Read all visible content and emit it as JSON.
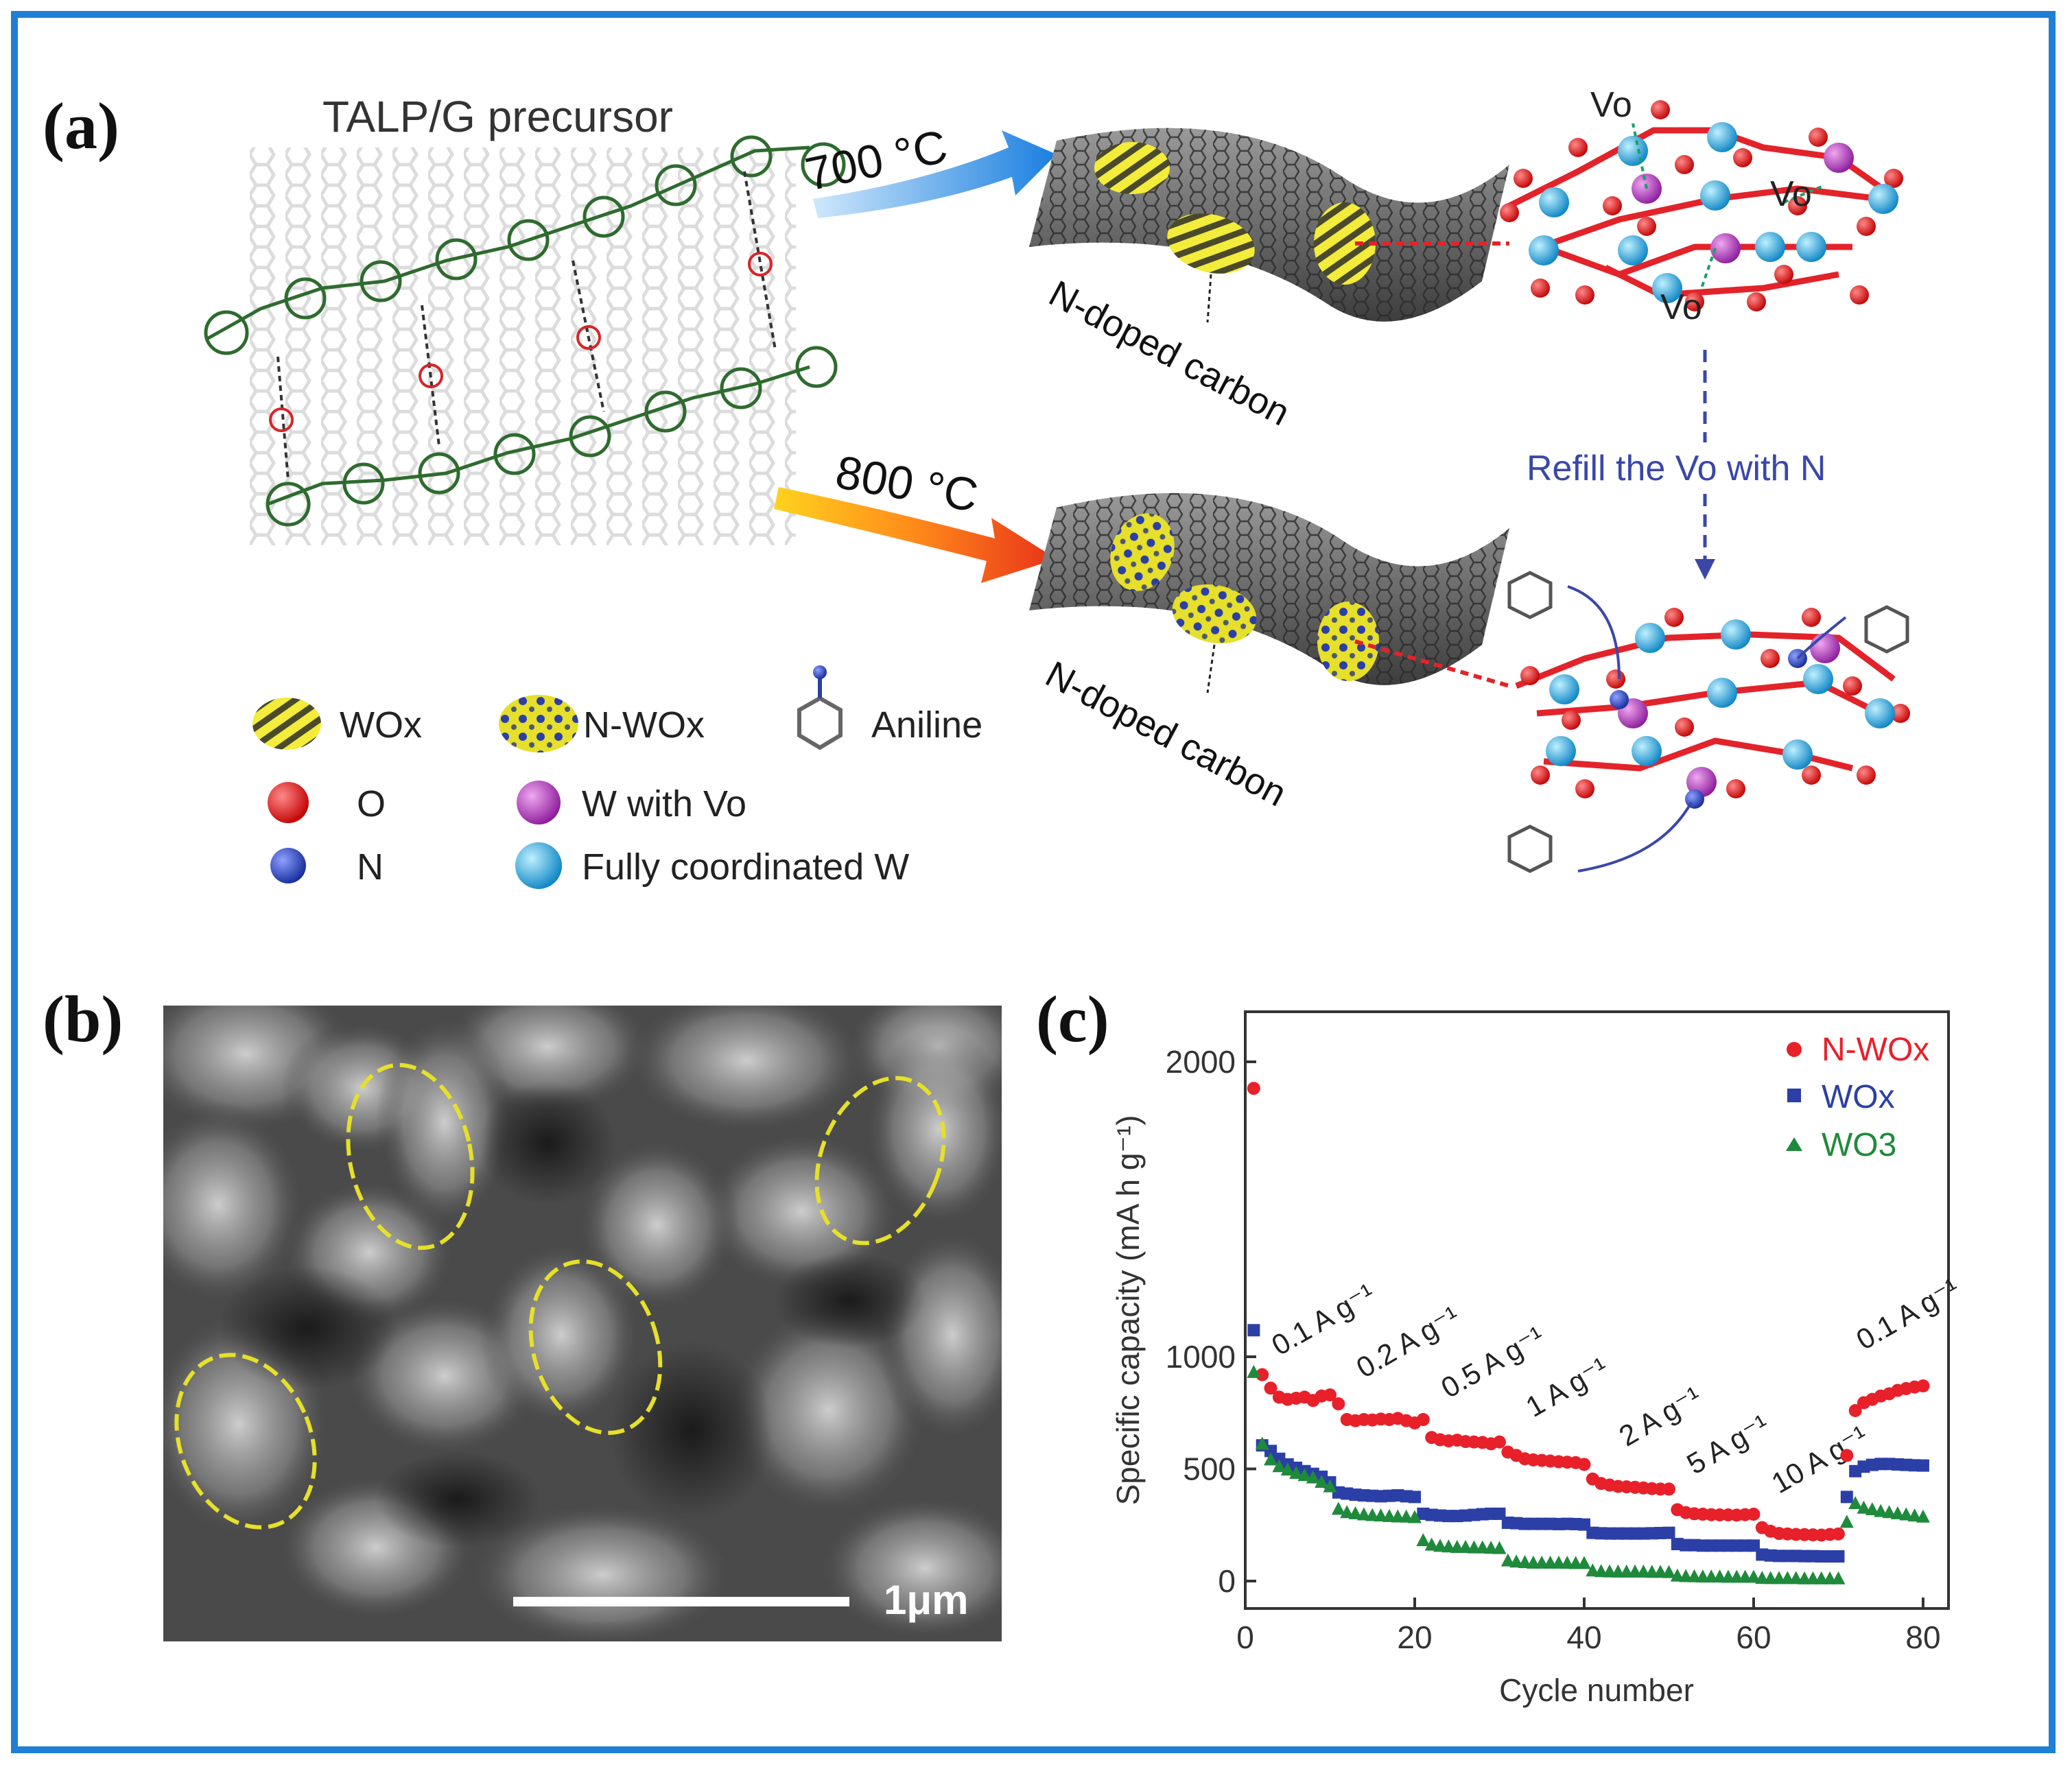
{
  "panels": {
    "a": "(a)",
    "b": "(b)",
    "c": "(c)"
  },
  "schematic": {
    "precursor_title": "TALP/G precursor",
    "temp_low": "700 °C",
    "temp_high": "800 °C",
    "carbon_label_top": "N-doped carbon",
    "carbon_label_bottom": "N-doped carbon",
    "vacancy_label": "Vo",
    "refill_text": "Refill the Vo with N",
    "legend": {
      "wox": "WOx",
      "nwox": "N-WOx",
      "aniline": "Aniline",
      "o": "O",
      "w_vo": "W with Vo",
      "n": "N",
      "w_full": "Fully coordinated W"
    }
  },
  "micrograph": {
    "scale_bar": "1μm"
  },
  "colors": {
    "frame": "#1e7fd6",
    "nwox": "#e8202a",
    "wox": "#2b3fa6",
    "wo3": "#1f8a3b",
    "refill": "#3a47a8"
  },
  "chart_data": {
    "type": "scatter",
    "xlabel": "Cycle number",
    "ylabel": "Specific capacity (mA h g⁻¹)",
    "xlim": [
      0,
      83
    ],
    "ylim": [
      -60,
      2100
    ],
    "xticks": [
      "0",
      "20",
      "40",
      "60",
      "80"
    ],
    "yticks": [
      "0",
      "500",
      "1000",
      "2000"
    ],
    "ytick_values": [
      0,
      500,
      1000,
      2000
    ],
    "ybreak": "between 1000 and 2000 (upper segment compressed)",
    "rate_labels": [
      "0.1 A g⁻¹",
      "0.2 A g⁻¹",
      "0.5 A g⁻¹",
      "1 A g⁻¹",
      "2 A g⁻¹",
      "5 A g⁻¹",
      "10 A g⁻¹",
      "0.1 A g⁻¹"
    ],
    "series": [
      {
        "name": "N-WOx",
        "marker": "circle",
        "x": [
          1,
          2,
          3,
          4,
          5,
          6,
          7,
          8,
          9,
          10,
          11,
          12,
          13,
          14,
          15,
          16,
          17,
          18,
          19,
          20,
          21,
          22,
          23,
          24,
          25,
          26,
          27,
          28,
          29,
          30,
          31,
          32,
          33,
          34,
          35,
          36,
          37,
          38,
          39,
          40,
          41,
          42,
          43,
          44,
          45,
          46,
          47,
          48,
          49,
          50,
          51,
          52,
          53,
          54,
          55,
          56,
          57,
          58,
          59,
          60,
          61,
          62,
          63,
          64,
          65,
          66,
          67,
          68,
          69,
          70,
          71,
          72,
          73,
          74,
          75,
          76,
          77,
          78,
          79,
          80
        ],
        "y": [
          1910,
          920,
          860,
          820,
          810,
          815,
          820,
          805,
          825,
          830,
          790,
          720,
          715,
          720,
          718,
          722,
          720,
          725,
          715,
          705,
          720,
          640,
          630,
          625,
          628,
          622,
          620,
          618,
          612,
          620,
          575,
          560,
          545,
          540,
          538,
          535,
          532,
          530,
          528,
          520,
          455,
          435,
          428,
          422,
          420,
          418,
          415,
          412,
          410,
          410,
          318,
          305,
          300,
          298,
          296,
          295,
          295,
          294,
          296,
          298,
          238,
          222,
          212,
          210,
          208,
          207,
          206,
          205,
          208,
          210,
          560,
          760,
          795,
          810,
          825,
          835,
          850,
          858,
          865,
          870
        ]
      },
      {
        "name": "WOx",
        "marker": "square",
        "x": [
          1,
          2,
          3,
          4,
          5,
          6,
          7,
          8,
          9,
          10,
          11,
          12,
          13,
          14,
          15,
          16,
          17,
          18,
          19,
          20,
          21,
          22,
          23,
          24,
          25,
          26,
          27,
          28,
          29,
          30,
          31,
          32,
          33,
          34,
          35,
          36,
          37,
          38,
          39,
          40,
          41,
          42,
          43,
          44,
          45,
          46,
          47,
          48,
          49,
          50,
          51,
          52,
          53,
          54,
          55,
          56,
          57,
          58,
          59,
          60,
          61,
          62,
          63,
          64,
          65,
          66,
          67,
          68,
          69,
          70,
          71,
          72,
          73,
          74,
          75,
          76,
          77,
          78,
          79,
          80
        ],
        "y": [
          1090,
          605,
          580,
          545,
          520,
          505,
          490,
          478,
          465,
          440,
          395,
          390,
          385,
          382,
          380,
          378,
          380,
          382,
          378,
          375,
          300,
          295,
          292,
          290,
          290,
          292,
          295,
          298,
          300,
          300,
          260,
          258,
          255,
          255,
          255,
          255,
          254,
          255,
          254,
          252,
          215,
          213,
          212,
          212,
          212,
          212,
          212,
          213,
          214,
          215,
          165,
          160,
          160,
          158,
          158,
          158,
          158,
          158,
          158,
          158,
          118,
          114,
          112,
          112,
          112,
          111,
          111,
          110,
          110,
          110,
          375,
          490,
          510,
          518,
          522,
          522,
          520,
          518,
          516,
          515
        ]
      },
      {
        "name": "WO3",
        "marker": "triangle",
        "x": [
          1,
          2,
          3,
          4,
          5,
          6,
          7,
          8,
          9,
          10,
          11,
          12,
          13,
          14,
          15,
          16,
          17,
          18,
          19,
          20,
          21,
          22,
          23,
          24,
          25,
          26,
          27,
          28,
          29,
          30,
          31,
          32,
          33,
          34,
          35,
          36,
          37,
          38,
          39,
          40,
          41,
          42,
          43,
          44,
          45,
          46,
          47,
          48,
          49,
          50,
          51,
          52,
          53,
          54,
          55,
          56,
          57,
          58,
          59,
          60,
          61,
          62,
          63,
          64,
          65,
          66,
          67,
          68,
          69,
          70,
          71,
          72,
          73,
          74,
          75,
          76,
          77,
          78,
          79,
          80
        ],
        "y": [
          930,
          610,
          540,
          510,
          495,
          480,
          470,
          460,
          440,
          420,
          320,
          305,
          300,
          295,
          292,
          290,
          288,
          286,
          285,
          283,
          180,
          160,
          155,
          152,
          150,
          150,
          148,
          148,
          146,
          145,
          90,
          85,
          82,
          80,
          80,
          80,
          80,
          79,
          78,
          78,
          45,
          42,
          41,
          40,
          40,
          40,
          40,
          39,
          39,
          38,
          22,
          20,
          19,
          18,
          18,
          18,
          17,
          17,
          17,
          17,
          12,
          11,
          11,
          11,
          11,
          10,
          10,
          10,
          10,
          10,
          262,
          345,
          325,
          318,
          310,
          305,
          300,
          295,
          290,
          285
        ]
      }
    ]
  }
}
